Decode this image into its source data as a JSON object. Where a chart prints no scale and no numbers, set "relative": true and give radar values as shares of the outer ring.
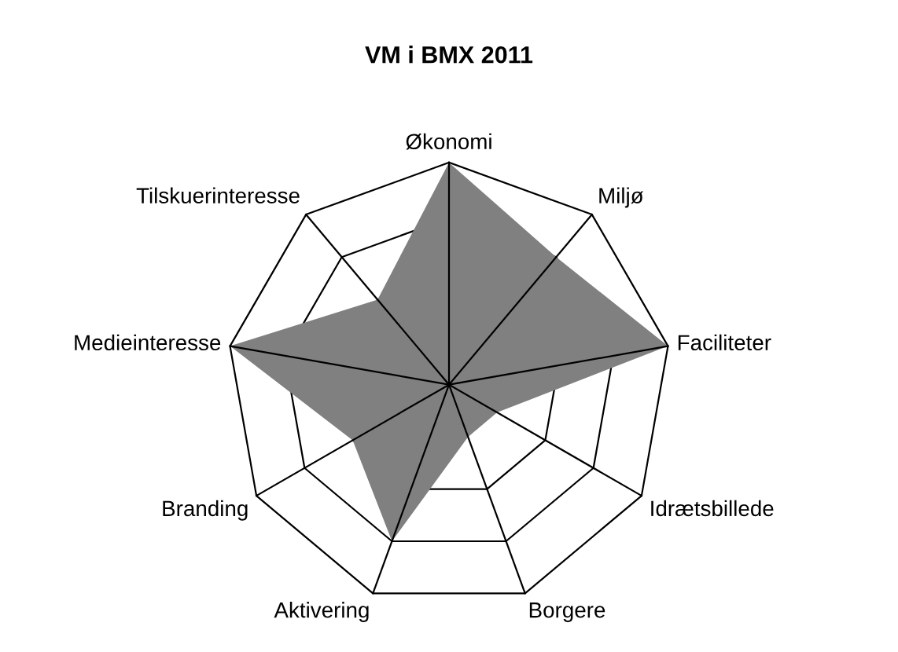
{
  "chart_data": {
    "type": "radar",
    "title": "VM i BMX 2011",
    "relative": true,
    "categories": [
      "Økonomi",
      "Miljø",
      "Faciliteter",
      "Idrætsbillede",
      "Borgere",
      "Aktivering",
      "Branding",
      "Medieinteresse",
      "Tilskuerinteresse"
    ],
    "series": [
      {
        "color": "#808080",
        "values": [
          1,
          0.75,
          1,
          0.25,
          0.25,
          0.75,
          0.5,
          1,
          0.5
        ]
      }
    ]
  }
}
